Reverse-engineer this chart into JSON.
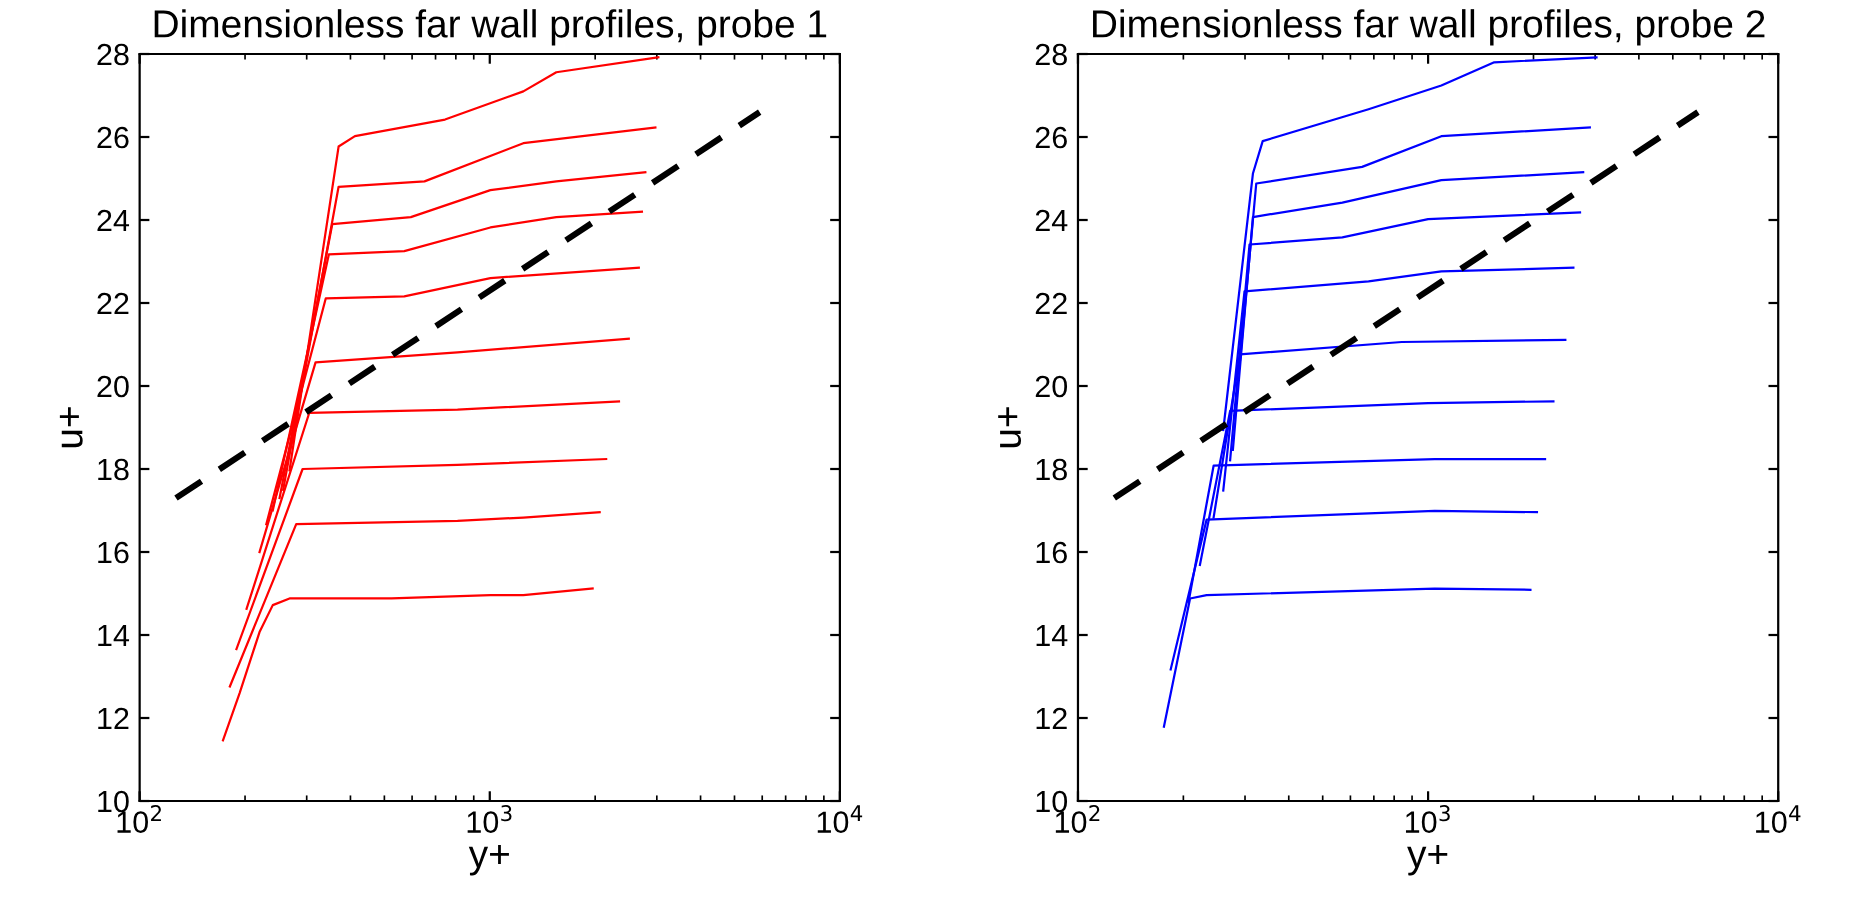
{
  "chart_data": [
    {
      "type": "line",
      "title": "Dimensionless far wall profiles, probe 1",
      "xlabel": "y+",
      "ylabel": "u+",
      "log": "x",
      "grid": false,
      "legend": false,
      "xlim": [
        100,
        10000
      ],
      "xticks": [
        {
          "value": 100,
          "label": "10$^{2}$"
        },
        {
          "value": 1000,
          "label": "10$^{3}$"
        },
        {
          "value": 10000,
          "label": "10$^{4}$"
        }
      ],
      "ylim": [
        10,
        28
      ],
      "yticks": [
        10,
        12,
        14,
        16,
        18,
        20,
        22,
        24,
        26,
        28
      ],
      "series": [
        {
          "color": "#ff0000",
          "x": [
            173,
            193,
            220,
            240,
            268,
            524,
            1004,
            1247,
            1967
          ],
          "values": [
            11.46,
            12.6,
            14.07,
            14.72,
            14.88,
            14.88,
            14.96,
            14.96,
            15.12
          ]
        },
        {
          "color": "#ff0000",
          "x": [
            181,
            280,
            809,
            1247,
            2060
          ],
          "values": [
            12.76,
            16.67,
            16.75,
            16.83,
            16.96
          ]
        },
        {
          "color": "#ff0000",
          "x": [
            189,
            292,
            809,
            2150
          ],
          "values": [
            13.66,
            18.0,
            18.1,
            18.24
          ]
        },
        {
          "color": "#ff0000",
          "x": [
            202,
            305,
            809,
            2339
          ],
          "values": [
            14.63,
            19.35,
            19.43,
            19.63
          ]
        },
        {
          "color": "#ff0000",
          "x": [
            220,
            318,
            809,
            2495
          ],
          "values": [
            16.0,
            20.57,
            20.81,
            21.14
          ]
        },
        {
          "color": "#ff0000",
          "x": [
            230,
            340,
            570,
            1004,
            2665
          ],
          "values": [
            16.67,
            22.11,
            22.16,
            22.6,
            22.85
          ]
        },
        {
          "color": "#ff0000",
          "x": [
            240,
            347,
            570,
            1004,
            1549,
            2720
          ],
          "values": [
            17.0,
            23.17,
            23.25,
            23.82,
            24.07,
            24.2
          ]
        },
        {
          "color": "#ff0000",
          "x": [
            251,
            355,
            595,
            1004,
            1549,
            2782
          ],
          "values": [
            17.3,
            23.9,
            24.07,
            24.72,
            24.93,
            25.15
          ]
        },
        {
          "color": "#ff0000",
          "x": [
            257,
            370,
            651,
            1247,
            2972
          ],
          "values": [
            17.5,
            24.8,
            24.93,
            25.85,
            26.23
          ]
        },
        {
          "color": "#ff0000",
          "x": [
            268,
            370,
            412,
            745,
            1247,
            1549,
            3030
          ],
          "values": [
            17.97,
            25.77,
            26.02,
            26.42,
            27.1,
            27.56,
            27.92
          ]
        },
        {
          "color": "#000000",
          "line_style": "dashed",
          "x": [
            127,
            5900
          ],
          "values": [
            17.3,
            26.6
          ]
        }
      ]
    },
    {
      "type": "line",
      "title": "Dimensionless far wall profiles, probe 2",
      "xlabel": "y+",
      "ylabel": "u+",
      "log": "x",
      "grid": false,
      "legend": false,
      "xlim": [
        100,
        10000
      ],
      "xticks": [
        {
          "value": 100,
          "label": "10$^{2}$"
        },
        {
          "value": 1000,
          "label": "10$^{3}$"
        },
        {
          "value": 10000,
          "label": "10$^{4}$"
        }
      ],
      "ylim": [
        10,
        28
      ],
      "yticks": [
        10,
        12,
        14,
        16,
        18,
        20,
        22,
        24,
        26,
        28
      ],
      "series": [
        {
          "color": "#0000ff",
          "x": [
            176,
            209,
            233,
            1044,
            1960
          ],
          "values": [
            11.79,
            14.88,
            14.96,
            15.12,
            15.09
          ]
        },
        {
          "color": "#0000ff",
          "x": [
            184,
            233,
            1044,
            2046
          ],
          "values": [
            13.17,
            16.78,
            16.99,
            16.96
          ]
        },
        {
          "color": "#0000ff",
          "x": [
            207,
            244,
            1044,
            2158
          ],
          "values": [
            14.8,
            18.08,
            18.24,
            18.24
          ]
        },
        {
          "color": "#0000ff",
          "x": [
            223,
            272,
            1000,
            2280
          ],
          "values": [
            15.69,
            19.4,
            19.59,
            19.63
          ]
        },
        {
          "color": "#0000ff",
          "x": [
            244,
            290,
            841,
            2466
          ],
          "values": [
            16.83,
            20.76,
            21.06,
            21.11
          ]
        },
        {
          "color": "#0000ff",
          "x": [
            260,
            299,
            676,
            1091,
            2600
          ],
          "values": [
            17.48,
            22.28,
            22.52,
            22.76,
            22.85
          ]
        },
        {
          "color": "#0000ff",
          "x": [
            272,
            309,
            569,
            1000,
            2716
          ],
          "values": [
            18.21,
            23.41,
            23.58,
            24.02,
            24.18
          ]
        },
        {
          "color": "#0000ff",
          "x": [
            277,
            316,
            569,
            1091,
            2773
          ],
          "values": [
            18.46,
            24.07,
            24.42,
            24.96,
            25.15
          ]
        },
        {
          "color": "#0000ff",
          "x": [
            290,
            323,
            648,
            1091,
            2897
          ],
          "values": [
            20.57,
            24.88,
            25.28,
            26.02,
            26.23
          ]
        },
        {
          "color": "#0000ff",
          "x": [
            260,
            316,
            337,
            676,
            1091,
            1545,
            3027
          ],
          "values": [
            18.94,
            25.12,
            25.9,
            26.67,
            27.24,
            27.8,
            27.92
          ]
        },
        {
          "color": "#000000",
          "line_style": "dashed",
          "x": [
            127,
            5900
          ],
          "values": [
            17.3,
            26.6
          ]
        }
      ]
    }
  ]
}
